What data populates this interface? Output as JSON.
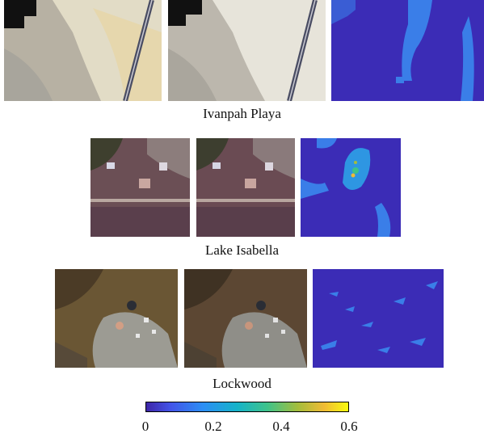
{
  "figure": {
    "rows": [
      {
        "caption": "Ivanpah Playa",
        "panels": [
          "ivanpah-image-a",
          "ivanpah-image-b",
          "ivanpah-change-map"
        ]
      },
      {
        "caption": "Lake Isabella",
        "panels": [
          "isabella-image-a",
          "isabella-image-b",
          "isabella-change-map"
        ]
      },
      {
        "caption": "Lockwood",
        "panels": [
          "lockwood-image-a",
          "lockwood-image-b",
          "lockwood-change-map"
        ]
      }
    ],
    "colorbar": {
      "min": 0,
      "max": 0.6,
      "ticks": [
        "0",
        "0.2",
        "0.4",
        "0.6"
      ],
      "colormap": [
        "#3e26a8",
        "#4354e8",
        "#2c8ef5",
        "#16b3c9",
        "#3fc38a",
        "#a4bd3c",
        "#f0bb35",
        "#f9fb0e"
      ]
    }
  }
}
